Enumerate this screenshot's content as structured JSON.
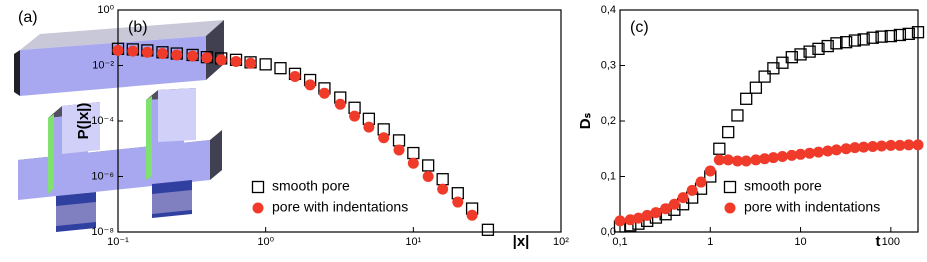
{
  "illustration": {
    "label": "(a)"
  },
  "chart_data": [
    {
      "type": "scatter",
      "panel_label": "(b)",
      "xlabel": "|x|",
      "ylabel": "P(|x|)",
      "xlog": true,
      "ylog": true,
      "grid": false,
      "legend": "lower left",
      "xlim": [
        0.1,
        100
      ],
      "ylim": [
        1e-08,
        1
      ],
      "xticks": [
        {
          "value": 0.1,
          "label": "10⁻¹"
        },
        {
          "value": 1,
          "label": "10⁰"
        },
        {
          "value": 10,
          "label": "10¹"
        },
        {
          "value": 100,
          "label": "10²"
        }
      ],
      "yticks": [
        {
          "value": 1e-08,
          "label": "10⁻⁸"
        },
        {
          "value": 1e-06,
          "label": "10⁻⁶"
        },
        {
          "value": 0.0001,
          "label": "10⁻⁴"
        },
        {
          "value": 0.01,
          "label": "10⁻²"
        },
        {
          "value": 1,
          "label": "10⁰"
        }
      ],
      "series": [
        {
          "name": "smooth pore",
          "color": "#000000",
          "marker": "square",
          "x": [
            0.1,
            0.126,
            0.158,
            0.2,
            0.25,
            0.32,
            0.4,
            0.5,
            0.63,
            0.79,
            1.0,
            1.26,
            1.58,
            2,
            2.5,
            3.2,
            4,
            5,
            6.3,
            8,
            10,
            12.6,
            15.8,
            20,
            25,
            32
          ],
          "values": [
            0.04,
            0.038,
            0.035,
            0.03,
            0.027,
            0.024,
            0.02,
            0.018,
            0.016,
            0.013,
            0.011,
            0.008,
            0.005,
            0.003,
            0.0015,
            0.0007,
            0.0003,
            0.00012,
            5e-05,
            2e-05,
            7e-06,
            2.5e-06,
            8e-07,
            2.5e-07,
            7e-08,
            1.2e-08
          ]
        },
        {
          "name": "pore with indentations",
          "color": "#f03a2a",
          "marker": "circle",
          "x": [
            0.1,
            0.126,
            0.158,
            0.2,
            0.25,
            0.32,
            0.4,
            0.5,
            0.63,
            0.79,
            1.58,
            2,
            2.5,
            3.2,
            4,
            5,
            6.3,
            8,
            10,
            12.6,
            15.8,
            20,
            25
          ],
          "values": [
            0.035,
            0.033,
            0.03,
            0.027,
            0.024,
            0.022,
            0.019,
            0.016,
            0.014,
            0.012,
            0.004,
            0.002,
            0.001,
            0.0004,
            0.00015,
            6e-05,
            2.5e-05,
            9e-06,
            3e-06,
            1e-06,
            3.5e-07,
            1.2e-07,
            4e-08
          ]
        }
      ]
    },
    {
      "type": "scatter",
      "panel_label": "(c)",
      "xlabel": "t",
      "ylabel": "Dₛ",
      "xlog": true,
      "ylog": false,
      "grid": false,
      "legend": "lower right",
      "xlim": [
        0.1,
        200
      ],
      "ylim": [
        0,
        0.4
      ],
      "xticks": [
        {
          "value": 0.1,
          "label": "0,1"
        },
        1,
        10,
        100
      ],
      "yticks": [
        {
          "value": 0,
          "label": "0,0"
        },
        {
          "value": 0.1,
          "label": "0,1"
        },
        {
          "value": 0.2,
          "label": "0,2"
        },
        {
          "value": 0.3,
          "label": "0,3"
        },
        {
          "value": 0.4,
          "label": "0,4"
        }
      ],
      "series": [
        {
          "name": "smooth pore",
          "color": "#000000",
          "marker": "square",
          "x": [
            0.1,
            0.13,
            0.16,
            0.2,
            0.25,
            0.32,
            0.4,
            0.5,
            0.63,
            0.79,
            1,
            1.26,
            1.58,
            2,
            2.5,
            3.2,
            4,
            5,
            6.3,
            8,
            10,
            12.6,
            15.8,
            20,
            25,
            32,
            40,
            50,
            63,
            79,
            100,
            126,
            158,
            200
          ],
          "values": [
            0.01,
            0.012,
            0.015,
            0.02,
            0.026,
            0.032,
            0.04,
            0.05,
            0.062,
            0.078,
            0.1,
            0.15,
            0.18,
            0.21,
            0.24,
            0.26,
            0.28,
            0.295,
            0.305,
            0.315,
            0.32,
            0.325,
            0.33,
            0.335,
            0.34,
            0.342,
            0.345,
            0.347,
            0.35,
            0.352,
            0.353,
            0.355,
            0.357,
            0.36
          ]
        },
        {
          "name": "pore with indentations",
          "color": "#f03a2a",
          "marker": "circle",
          "x": [
            0.1,
            0.13,
            0.16,
            0.2,
            0.25,
            0.32,
            0.4,
            0.5,
            0.63,
            0.79,
            1,
            1.26,
            1.58,
            2,
            2.5,
            3.2,
            4,
            5,
            6.3,
            8,
            10,
            12.6,
            15.8,
            20,
            25,
            32,
            40,
            50,
            63,
            79,
            100,
            126,
            158,
            200
          ],
          "values": [
            0.02,
            0.022,
            0.025,
            0.03,
            0.035,
            0.042,
            0.05,
            0.062,
            0.075,
            0.09,
            0.11,
            0.13,
            0.13,
            0.128,
            0.128,
            0.13,
            0.132,
            0.134,
            0.136,
            0.138,
            0.14,
            0.142,
            0.144,
            0.146,
            0.148,
            0.15,
            0.152,
            0.153,
            0.154,
            0.155,
            0.156,
            0.156,
            0.157,
            0.157
          ]
        }
      ]
    }
  ]
}
